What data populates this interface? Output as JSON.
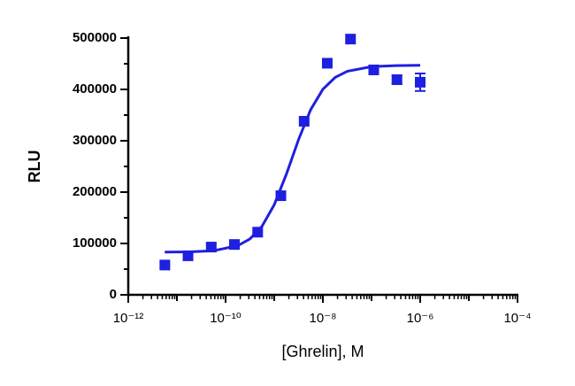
{
  "chart_data": {
    "type": "scatter",
    "xlabel": "[Ghrelin], M",
    "ylabel": "RLU",
    "xscale": "log",
    "xlim": [
      1e-12,
      0.0001
    ],
    "xticks": [
      {
        "value": 1e-12,
        "label": "10⁻¹²"
      },
      {
        "value": 1e-10,
        "label": "10⁻¹⁰"
      },
      {
        "value": 1e-08,
        "label": "10⁻⁸"
      },
      {
        "value": 1e-06,
        "label": "10⁻⁶"
      },
      {
        "value": 0.0001,
        "label": "10⁻⁴"
      }
    ],
    "ylim": [
      0,
      500000
    ],
    "yticks": [
      0,
      100000,
      200000,
      300000,
      400000,
      500000
    ],
    "series": [
      {
        "type": "scatter",
        "color": "#1f1fe0",
        "x": [
          5.65e-12,
          1.69e-11,
          5.08e-11,
          1.52e-10,
          4.57e-10,
          1.37e-09,
          4.12e-09,
          1.23e-08,
          3.7e-08,
          1.11e-07,
          3.33e-07,
          1e-06
        ],
        "values": [
          58000,
          76000,
          93000,
          98000,
          122000,
          193000,
          338000,
          451000,
          498000,
          438000,
          419000,
          414000
        ],
        "errors": [
          null,
          null,
          null,
          null,
          null,
          null,
          null,
          null,
          null,
          null,
          8000,
          17000
        ]
      },
      {
        "type": "line",
        "color": "#1f1fe0",
        "x": [
          5.62e-12,
          1.78e-11,
          5.62e-11,
          1.78e-10,
          3.16e-10,
          5.62e-10,
          1e-09,
          1.78e-09,
          3.16e-09,
          5.62e-09,
          1e-08,
          1.78e-08,
          3.16e-08,
          1e-07,
          3.16e-07,
          1e-06
        ],
        "values": [
          83100,
          83700,
          85900,
          95700,
          108800,
          133500,
          175400,
          235200,
          302500,
          360700,
          400400,
          423300,
          435400,
          444300,
          446400,
          446900
        ]
      }
    ]
  }
}
